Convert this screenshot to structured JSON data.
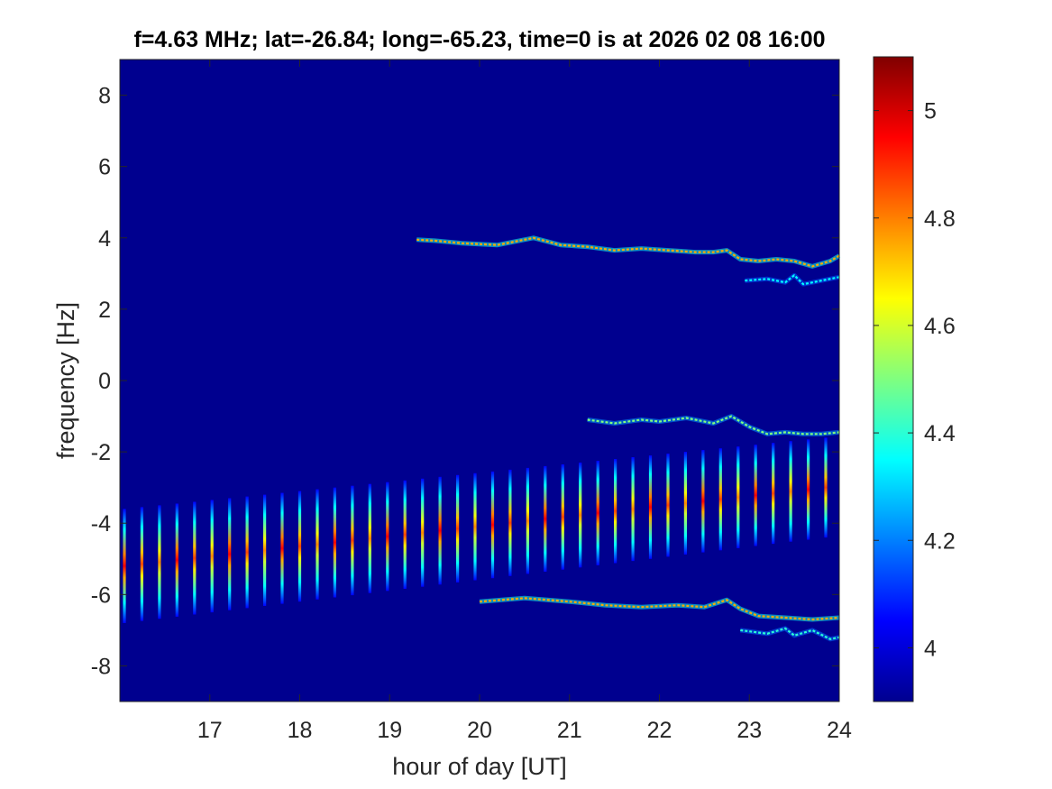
{
  "chart_data": {
    "type": "heatmap",
    "title": "f=4.63 MHz;  lat=-26.84; long=-65.23, time=0 is at 2026 02 08 16:00",
    "xlabel": "hour of day [UT]",
    "ylabel": "frequency [Hz]",
    "xlim": [
      16,
      24
    ],
    "ylim": [
      -9,
      9
    ],
    "x_ticks": [
      17,
      18,
      19,
      20,
      21,
      22,
      23,
      24
    ],
    "x_tick_labels": [
      "17",
      "18",
      "19",
      "20",
      "21",
      "22",
      "23",
      "24"
    ],
    "y_ticks": [
      -8,
      -6,
      -4,
      -2,
      0,
      2,
      4,
      6,
      8
    ],
    "y_tick_labels": [
      "-8",
      "-6",
      "-4",
      "-2",
      "0",
      "2",
      "4",
      "6",
      "8"
    ],
    "colorbar": {
      "range": [
        3.9,
        5.1
      ],
      "ticks": [
        4,
        4.2,
        4.4,
        4.6,
        4.8,
        5
      ],
      "tick_labels": [
        "4",
        "4.2",
        "4.4",
        "4.6",
        "4.8",
        "5"
      ],
      "colormap": "jet"
    },
    "background_color": "#00008f",
    "grid": false,
    "features": [
      {
        "kind": "trace",
        "points": [
          [
            19.3,
            3.95
          ],
          [
            19.5,
            3.92
          ],
          [
            19.8,
            3.85
          ],
          [
            20.2,
            3.8
          ],
          [
            20.6,
            4.0
          ],
          [
            20.9,
            3.8
          ],
          [
            21.2,
            3.75
          ],
          [
            21.5,
            3.65
          ],
          [
            21.8,
            3.7
          ],
          [
            22.1,
            3.65
          ],
          [
            22.4,
            3.6
          ],
          [
            22.6,
            3.6
          ],
          [
            22.75,
            3.65
          ],
          [
            22.9,
            3.4
          ],
          [
            23.1,
            3.35
          ],
          [
            23.3,
            3.4
          ],
          [
            23.5,
            3.35
          ],
          [
            23.7,
            3.2
          ],
          [
            23.9,
            3.35
          ],
          [
            24.0,
            3.5
          ]
        ],
        "intensity": 4.75
      },
      {
        "kind": "trace",
        "points": [
          [
            22.95,
            2.8
          ],
          [
            23.2,
            2.85
          ],
          [
            23.4,
            2.75
          ],
          [
            23.5,
            2.95
          ],
          [
            23.6,
            2.7
          ],
          [
            23.8,
            2.8
          ],
          [
            24.0,
            2.9
          ]
        ],
        "intensity": 4.35
      },
      {
        "kind": "trace",
        "points": [
          [
            21.2,
            -1.1
          ],
          [
            21.5,
            -1.2
          ],
          [
            21.8,
            -1.1
          ],
          [
            22.0,
            -1.15
          ],
          [
            22.3,
            -1.05
          ],
          [
            22.6,
            -1.2
          ],
          [
            22.8,
            -1.0
          ],
          [
            23.0,
            -1.3
          ],
          [
            23.2,
            -1.5
          ],
          [
            23.4,
            -1.45
          ],
          [
            23.6,
            -1.5
          ],
          [
            23.8,
            -1.5
          ],
          [
            24.0,
            -1.45
          ]
        ],
        "intensity": 4.5
      },
      {
        "kind": "trace",
        "points": [
          [
            20.0,
            -6.2
          ],
          [
            20.5,
            -6.1
          ],
          [
            21.0,
            -6.2
          ],
          [
            21.4,
            -6.3
          ],
          [
            21.8,
            -6.35
          ],
          [
            22.2,
            -6.3
          ],
          [
            22.5,
            -6.35
          ],
          [
            22.75,
            -6.15
          ],
          [
            22.9,
            -6.4
          ],
          [
            23.1,
            -6.6
          ],
          [
            23.4,
            -6.65
          ],
          [
            23.7,
            -6.7
          ],
          [
            24.0,
            -6.65
          ]
        ],
        "intensity": 4.75
      },
      {
        "kind": "trace",
        "points": [
          [
            22.9,
            -7.0
          ],
          [
            23.2,
            -7.1
          ],
          [
            23.4,
            -6.95
          ],
          [
            23.5,
            -7.15
          ],
          [
            23.7,
            -7.0
          ],
          [
            23.9,
            -7.25
          ],
          [
            24.0,
            -7.2
          ]
        ],
        "intensity": 4.4
      },
      {
        "kind": "streaks",
        "x_start": 16.05,
        "x_end": 23.85,
        "count": 41,
        "center_start": -5.2,
        "center_end": -3.0,
        "half_height_start": 1.6,
        "half_height_end": 1.4,
        "peak_intensity": 4.95
      }
    ]
  }
}
